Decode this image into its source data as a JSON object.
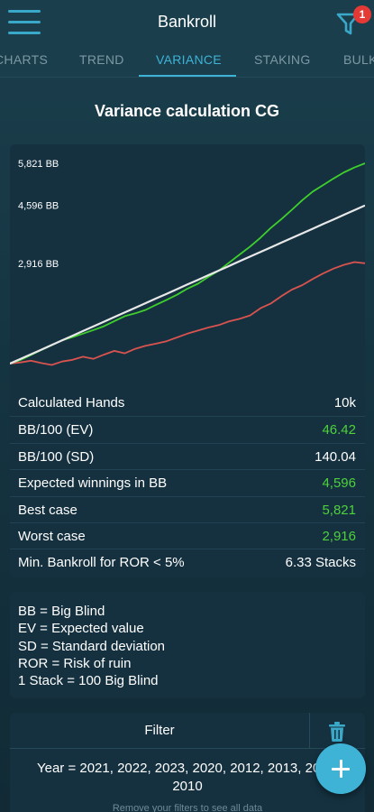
{
  "appbar": {
    "title": "Bankroll",
    "filter_count": "1"
  },
  "tabs": [
    {
      "label": "CHARTS"
    },
    {
      "label": "TREND"
    },
    {
      "label": "VARIANCE",
      "active": true
    },
    {
      "label": "STAKING"
    },
    {
      "label": "BULK"
    }
  ],
  "section_title": "Variance calculation CG",
  "chart_data": {
    "type": "line",
    "y_tick_labels": [
      "5,821 BB",
      "4,596 BB",
      "2,916 BB"
    ],
    "y_ticks": [
      5821,
      4596,
      2916
    ],
    "x_hands": 10000,
    "colors": {
      "best": "#3fcf2d",
      "ev": "#e8e8e8",
      "worst": "#d9534f"
    },
    "series": [
      {
        "name": "Best case",
        "values": [
          0,
          105,
          250,
          395,
          535,
          680,
          770,
          870,
          975,
          1085,
          1235,
          1380,
          1460,
          1560,
          1710,
          1850,
          2000,
          2180,
          2320,
          2520,
          2700,
          2940,
          3170,
          3400,
          3660,
          3950,
          4200,
          4470,
          4750,
          5000,
          5190,
          5380,
          5560,
          5700,
          5821
        ]
      },
      {
        "name": "EV",
        "values": [
          0,
          135,
          270,
          405,
          541,
          676,
          811,
          946,
          1082,
          1217,
          1352,
          1487,
          1622,
          1758,
          1893,
          2028,
          2163,
          2299,
          2434,
          2569,
          2704,
          2839,
          2975,
          3110,
          3245,
          3380,
          3516,
          3651,
          3786,
          3921,
          4056,
          4191,
          4326,
          4461,
          4596
        ]
      },
      {
        "name": "Worst case",
        "values": [
          0,
          35,
          85,
          15,
          -40,
          60,
          110,
          200,
          140,
          260,
          370,
          300,
          430,
          520,
          580,
          650,
          760,
          870,
          960,
          1050,
          1120,
          1230,
          1300,
          1400,
          1610,
          1750,
          1960,
          2150,
          2280,
          2460,
          2620,
          2760,
          2870,
          2950,
          2916
        ]
      }
    ]
  },
  "stats": [
    {
      "label": "Calculated Hands",
      "value": "10k",
      "color": "white"
    },
    {
      "label": "BB/100 (EV)",
      "value": "46.42",
      "color": "green"
    },
    {
      "label": "BB/100 (SD)",
      "value": "140.04",
      "color": "white"
    },
    {
      "label": "Expected winnings in BB",
      "value": "4,596",
      "color": "green"
    },
    {
      "label": "Best case",
      "value": "5,821",
      "color": "green"
    },
    {
      "label": "Worst case",
      "value": "2,916",
      "color": "green"
    },
    {
      "label": "Min. Bankroll for ROR < 5%",
      "value": "6.33 Stacks",
      "color": "white"
    }
  ],
  "legend": [
    "BB = Big Blind",
    "EV = Expected value",
    "SD = Standard deviation",
    "ROR = Risk of ruin",
    "1 Stack = 100 Big Blind"
  ],
  "filter": {
    "title": "Filter",
    "text_line1": "Year = 2021, 2022, 2023, 2020, 2012, 2013, 2011,",
    "text_line2": "2010",
    "hint": "Remove your filters to see all data"
  },
  "icons": {
    "menu": "hamburger-menu-icon",
    "filter": "funnel-icon",
    "trash": "trash-icon",
    "fab": "plus-icon"
  }
}
